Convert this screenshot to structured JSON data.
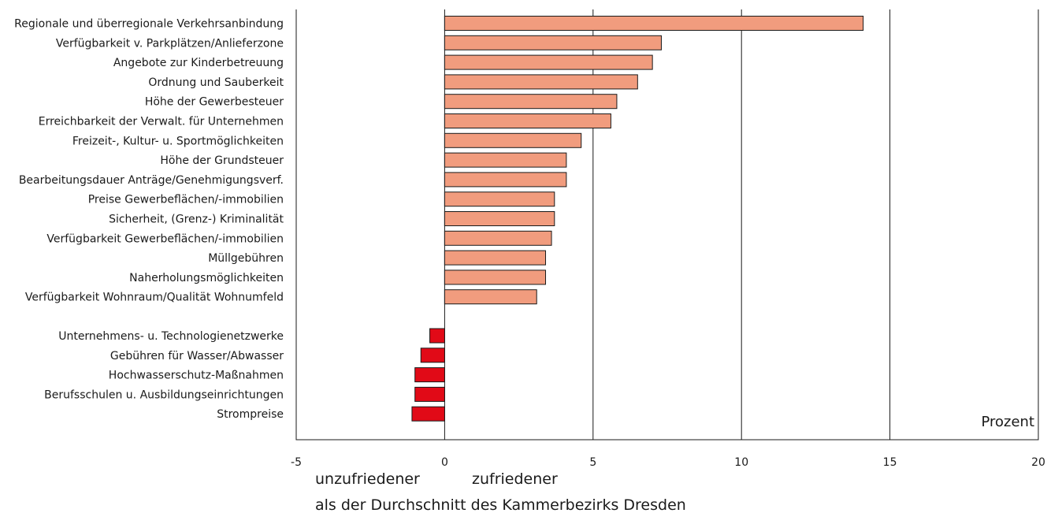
{
  "chart_data": {
    "type": "bar",
    "orientation": "horizontal",
    "xlim": [
      -5,
      20
    ],
    "x_ticks": [
      -5,
      0,
      5,
      10,
      15,
      20
    ],
    "grid": "vertical lines at 0, 5, 10, 15",
    "unit_label": "Prozent",
    "note_left": "unzufriedener",
    "note_right": "zufriedener",
    "note_bottom": "als der Durchschnitt des Kammerbezirks Dresden",
    "colors": {
      "positive": "#f19c7e",
      "negative": "#e10a17",
      "border": "#1a1a1a"
    },
    "groups": [
      {
        "categories": [
          "Regionale und überregionale Verkehrsanbindung",
          "Verfügbarkeit v. Parkplätzen/Anlieferzone",
          "Angebote zur Kinderbetreuung",
          "Ordnung und Sauberkeit",
          "Höhe der Gewerbesteuer",
          "Erreichbarkeit der Verwalt. für Unternehmen",
          "Freizeit-, Kultur- u. Sportmöglichkeiten",
          "Höhe der Grundsteuer",
          "Bearbeitungsdauer Anträge/Genehmigungsverf.",
          "Preise Gewerbeflächen/-immobilien",
          "Sicherheit, (Grenz-) Kriminalität",
          "Verfügbarkeit Gewerbeflächen/-immobilien",
          "Müllgebühren",
          "Naherholungsmöglichkeiten",
          "Verfügbarkeit Wohnraum/Qualität Wohnumfeld"
        ],
        "values": [
          14.1,
          7.3,
          7.0,
          6.5,
          5.8,
          5.6,
          4.6,
          4.1,
          4.1,
          3.7,
          3.7,
          3.6,
          3.4,
          3.4,
          3.1
        ]
      },
      {
        "categories": [
          "Unternehmens- u. Technologienetzwerke",
          "Gebühren für Wasser/Abwasser",
          "Hochwasserschutz-Maßnahmen",
          "Berufsschulen u. Ausbildungseinrichtungen",
          "Strompreise"
        ],
        "values": [
          -0.5,
          -0.8,
          -1.0,
          -1.0,
          -1.1
        ]
      }
    ]
  }
}
